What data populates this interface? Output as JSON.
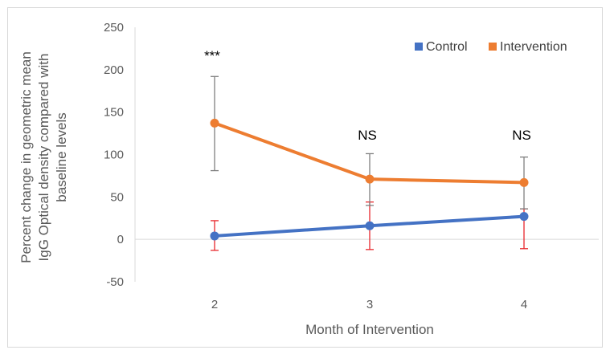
{
  "chart_data": {
    "type": "line",
    "title": "",
    "xlabel": "Month of Intervention",
    "ylabel_lines": [
      "Percent change in geometric mean",
      "IgG Optical density compared with",
      "baseline levels"
    ],
    "ylim": [
      -50,
      250
    ],
    "yticks": [
      -50,
      0,
      50,
      100,
      150,
      200,
      250
    ],
    "categories": [
      "2",
      "3",
      "4"
    ],
    "legend_position": "top-right",
    "grid": false,
    "series": [
      {
        "name": "Control",
        "color": "#4472c4",
        "error_color": "#e8272c",
        "values": [
          4,
          16,
          27
        ],
        "error_low": [
          -13,
          -12,
          -11
        ],
        "error_high": [
          22,
          44,
          36
        ]
      },
      {
        "name": "Intervention",
        "color": "#ed7d31",
        "error_color": "#7f7f7f",
        "values": [
          137,
          71,
          67
        ],
        "error_low": [
          81,
          40,
          36
        ],
        "error_high": [
          192,
          101,
          97
        ]
      }
    ],
    "annotations": [
      "***",
      "NS",
      "NS"
    ]
  }
}
